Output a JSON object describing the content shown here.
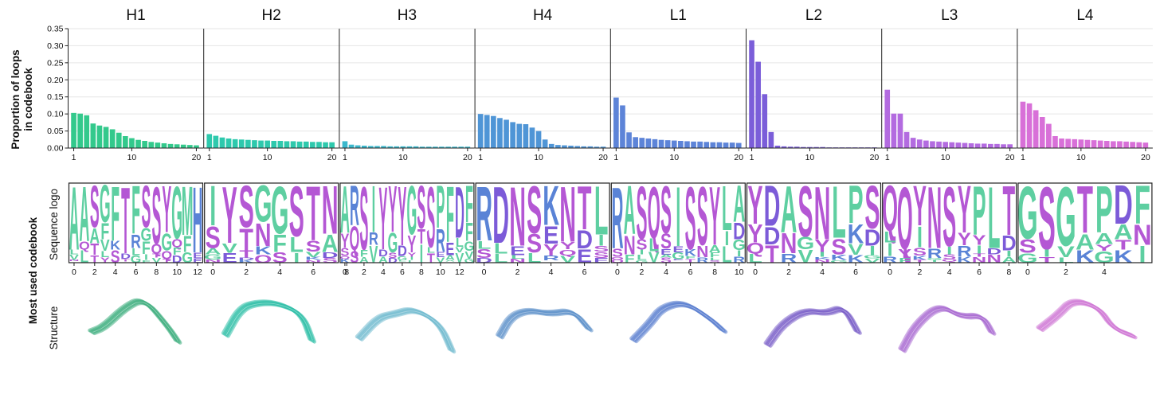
{
  "figure": {
    "ylabel_top_line1": "Proportion of loops",
    "ylabel_top_line2": "in codebook",
    "side_label": "Most used codebook",
    "row_label_logo": "Sequence logo",
    "row_label_structure": "Structure"
  },
  "residue_colors": {
    "A": "#5ecfa1",
    "G": "#5ecfa1",
    "V": "#5ecfa1",
    "I": "#5ecfa1",
    "L": "#5ecfa1",
    "F": "#5ecfa1",
    "M": "#5ecfa1",
    "W": "#5ecfa1",
    "P": "#5ecfa1",
    "S": "#b457d4",
    "T": "#b457d4",
    "Y": "#b457d4",
    "C": "#b457d4",
    "N": "#b457d4",
    "Q": "#b457d4",
    "D": "#7c5bd8",
    "E": "#7c5bd8",
    "K": "#5a83d6",
    "R": "#5a83d6",
    "H": "#5a83d6"
  },
  "chart_data": [
    {
      "type": "bar",
      "title": "H1",
      "color": "#33c98c",
      "x": [
        1,
        2,
        3,
        4,
        5,
        6,
        7,
        8,
        9,
        10,
        11,
        12,
        13,
        14,
        15,
        16,
        17,
        18,
        19,
        20
      ],
      "values": [
        0.103,
        0.101,
        0.096,
        0.072,
        0.066,
        0.062,
        0.055,
        0.045,
        0.035,
        0.029,
        0.024,
        0.021,
        0.018,
        0.016,
        0.014,
        0.012,
        0.011,
        0.01,
        0.009,
        0.008
      ],
      "xticks": [
        1,
        10,
        20
      ],
      "ylim": [
        0,
        0.35
      ],
      "yticks": [
        "0.00",
        "0.05",
        "0.10",
        "0.15",
        "0.20",
        "0.25",
        "0.30",
        "0.35"
      ],
      "logo": {
        "consensus": "AASGFTFSSYGMH",
        "xticks": [
          "0",
          "2",
          "4",
          "6",
          "8",
          "10",
          "12"
        ]
      },
      "structure_color": "#3fae7f"
    },
    {
      "type": "bar",
      "title": "H2",
      "color": "#2ec9ad",
      "x": [
        1,
        2,
        3,
        4,
        5,
        6,
        7,
        8,
        9,
        10,
        11,
        12,
        13,
        14,
        15,
        16,
        17,
        18,
        19,
        20
      ],
      "values": [
        0.041,
        0.036,
        0.031,
        0.028,
        0.026,
        0.025,
        0.024,
        0.023,
        0.022,
        0.022,
        0.021,
        0.021,
        0.02,
        0.02,
        0.019,
        0.019,
        0.018,
        0.018,
        0.017,
        0.017
      ],
      "xticks": [
        1,
        10,
        20
      ],
      "ylim": [
        0,
        0.35
      ],
      "logo": {
        "consensus": "IYSGGSTN",
        "xticks": [
          "0",
          "2",
          "4",
          "6",
          "8"
        ]
      },
      "structure_color": "#2fc0a8"
    },
    {
      "type": "bar",
      "title": "H3",
      "color": "#3bb8cc",
      "x": [
        1,
        2,
        3,
        4,
        5,
        6,
        7,
        8,
        9,
        10,
        11,
        12,
        13,
        14,
        15,
        16,
        17,
        18,
        19,
        20
      ],
      "values": [
        0.02,
        0.01,
        0.008,
        0.007,
        0.006,
        0.006,
        0.006,
        0.005,
        0.005,
        0.005,
        0.005,
        0.005,
        0.004,
        0.004,
        0.004,
        0.004,
        0.004,
        0.004,
        0.004,
        0.004
      ],
      "xticks": [
        1,
        10,
        20
      ],
      "ylim": [
        0,
        0.35
      ],
      "logo": {
        "consensus": "ARSIYYYGSSPFDF",
        "xticks": [
          "0",
          "2",
          "4",
          "6",
          "8",
          "10",
          "12"
        ]
      },
      "structure_color": "#73bcd0"
    },
    {
      "type": "bar",
      "title": "H4",
      "color": "#4f95d6",
      "x": [
        1,
        2,
        3,
        4,
        5,
        6,
        7,
        8,
        9,
        10,
        11,
        12,
        13,
        14,
        15,
        16,
        17,
        18,
        19,
        20
      ],
      "values": [
        0.1,
        0.097,
        0.094,
        0.088,
        0.083,
        0.076,
        0.071,
        0.07,
        0.06,
        0.05,
        0.025,
        0.012,
        0.009,
        0.008,
        0.007,
        0.006,
        0.005,
        0.005,
        0.004,
        0.004
      ],
      "xticks": [
        1,
        10,
        20
      ],
      "ylim": [
        0,
        0.35
      ],
      "logo": {
        "consensus": "RDNSKNTL",
        "xticks": [
          "0",
          "2",
          "4",
          "6"
        ]
      },
      "structure_color": "#5f92cb"
    },
    {
      "type": "bar",
      "title": "L1",
      "color": "#5d84d8",
      "x": [
        1,
        2,
        3,
        4,
        5,
        6,
        7,
        8,
        9,
        10,
        11,
        12,
        13,
        14,
        15,
        16,
        17,
        18,
        19,
        20
      ],
      "values": [
        0.148,
        0.125,
        0.046,
        0.032,
        0.03,
        0.028,
        0.026,
        0.024,
        0.023,
        0.022,
        0.021,
        0.02,
        0.019,
        0.019,
        0.018,
        0.017,
        0.017,
        0.016,
        0.016,
        0.015
      ],
      "xticks": [
        1,
        10,
        20
      ],
      "ylim": [
        0,
        0.35
      ],
      "logo": {
        "consensus": "RASQSISSYLA",
        "xticks": [
          "0",
          "2",
          "4",
          "6",
          "8",
          "10"
        ]
      },
      "structure_color": "#5b7fd0"
    },
    {
      "type": "bar",
      "title": "L2",
      "color": "#7b5ed9",
      "x": [
        1,
        2,
        3,
        4,
        5,
        6,
        7,
        8,
        9,
        10,
        11,
        12,
        13,
        14,
        15,
        16,
        17,
        18,
        19,
        20
      ],
      "values": [
        0.316,
        0.253,
        0.158,
        0.047,
        0.007,
        0.005,
        0.004,
        0.004,
        0.003,
        0.003,
        0.003,
        0.003,
        0.002,
        0.002,
        0.002,
        0.002,
        0.002,
        0.002,
        0.002,
        0.002
      ],
      "xticks": [
        1,
        10,
        20
      ],
      "ylim": [
        0,
        0.35
      ],
      "logo": {
        "consensus": "YDASNLPS",
        "xticks": [
          "0",
          "2",
          "4",
          "6"
        ]
      },
      "structure_color": "#7a5ec8"
    },
    {
      "type": "bar",
      "title": "L3",
      "color": "#b36be0",
      "x": [
        1,
        2,
        3,
        4,
        5,
        6,
        7,
        8,
        9,
        10,
        11,
        12,
        13,
        14,
        15,
        16,
        17,
        18,
        19,
        20
      ],
      "values": [
        0.171,
        0.101,
        0.101,
        0.047,
        0.03,
        0.025,
        0.022,
        0.02,
        0.019,
        0.018,
        0.017,
        0.016,
        0.015,
        0.014,
        0.013,
        0.013,
        0.012,
        0.012,
        0.011,
        0.011
      ],
      "xticks": [
        1,
        10,
        20
      ],
      "ylim": [
        0,
        0.35
      ],
      "logo": {
        "consensus": "QQYNSYPLT",
        "xticks": [
          "0",
          "2",
          "4",
          "6",
          "8"
        ]
      },
      "structure_color": "#a96bd2"
    },
    {
      "type": "bar",
      "title": "L4",
      "color": "#d870d8",
      "x": [
        1,
        2,
        3,
        4,
        5,
        6,
        7,
        8,
        9,
        10,
        11,
        12,
        13,
        14,
        15,
        16,
        17,
        18,
        19,
        20
      ],
      "values": [
        0.136,
        0.131,
        0.111,
        0.091,
        0.071,
        0.035,
        0.028,
        0.027,
        0.026,
        0.025,
        0.024,
        0.023,
        0.022,
        0.021,
        0.02,
        0.02,
        0.019,
        0.018,
        0.017,
        0.016
      ],
      "xticks": [
        1,
        10,
        20
      ],
      "ylim": [
        0,
        0.35
      ],
      "logo": {
        "consensus": "GSGTPDF",
        "xticks": [
          "0",
          "2",
          "4"
        ]
      },
      "structure_color": "#d079d6"
    }
  ]
}
